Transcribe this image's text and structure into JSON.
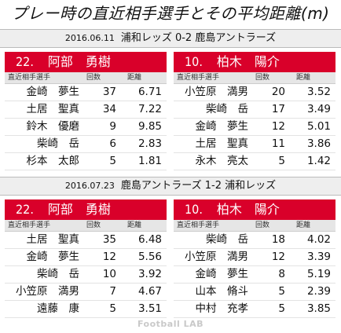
{
  "title": "プレー時の直近相手選手とその平均距離(m)",
  "columns": {
    "name": "直近相手選手",
    "count": "回数",
    "distance": "距離"
  },
  "matches": [
    {
      "date": "2016.06.11",
      "label": "浦和レッズ 0-2 鹿島アントラーズ",
      "players": [
        {
          "number": "22.",
          "name": "阿部　勇樹",
          "rows": [
            {
              "name": "金崎　夢生",
              "count": "37",
              "distance": "6.71"
            },
            {
              "name": "土居　聖真",
              "count": "34",
              "distance": "7.22"
            },
            {
              "name": "鈴木　優磨",
              "count": "9",
              "distance": "9.85"
            },
            {
              "name": "柴崎　岳",
              "count": "6",
              "distance": "2.83"
            },
            {
              "name": "杉本　太郎",
              "count": "5",
              "distance": "1.81"
            }
          ]
        },
        {
          "number": "10.",
          "name": "柏木　陽介",
          "rows": [
            {
              "name": "小笠原　満男",
              "count": "20",
              "distance": "3.52"
            },
            {
              "name": "柴崎　岳",
              "count": "17",
              "distance": "3.49"
            },
            {
              "name": "金崎　夢生",
              "count": "12",
              "distance": "5.01"
            },
            {
              "name": "土居　聖真",
              "count": "11",
              "distance": "3.86"
            },
            {
              "name": "永木　亮太",
              "count": "5",
              "distance": "1.42"
            }
          ]
        }
      ]
    },
    {
      "date": "2016.07.23",
      "label": "鹿島アントラーズ 1-2 浦和レッズ",
      "players": [
        {
          "number": "22.",
          "name": "阿部　勇樹",
          "rows": [
            {
              "name": "土居　聖真",
              "count": "35",
              "distance": "6.48"
            },
            {
              "name": "金崎　夢生",
              "count": "12",
              "distance": "5.56"
            },
            {
              "name": "柴崎　岳",
              "count": "10",
              "distance": "3.92"
            },
            {
              "name": "小笠原　満男",
              "count": "7",
              "distance": "4.67"
            },
            {
              "name": "遠藤　康",
              "count": "5",
              "distance": "3.51"
            }
          ]
        },
        {
          "number": "10.",
          "name": "柏木　陽介",
          "rows": [
            {
              "name": "柴崎　岳",
              "count": "18",
              "distance": "4.02"
            },
            {
              "name": "小笠原　満男",
              "count": "12",
              "distance": "3.39"
            },
            {
              "name": "金崎　夢生",
              "count": "8",
              "distance": "5.19"
            },
            {
              "name": "山本　脩斗",
              "count": "5",
              "distance": "2.39"
            },
            {
              "name": "中村　充孝",
              "count": "5",
              "distance": "3.85"
            }
          ]
        }
      ]
    }
  ],
  "footer": "Football LAB",
  "colors": {
    "header_red": "#d9002a",
    "match_bar": "#eeeeee",
    "column_header": "#e6e6e6"
  }
}
